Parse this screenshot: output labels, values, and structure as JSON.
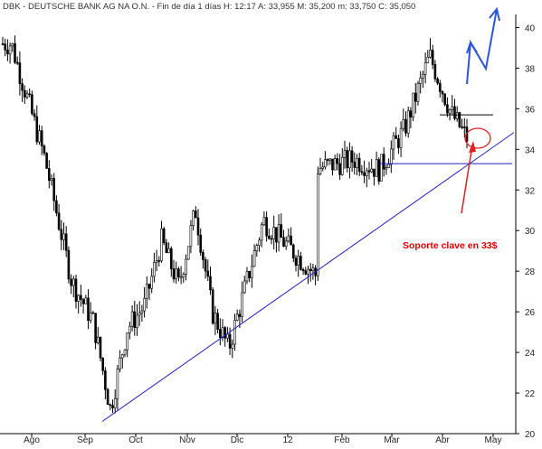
{
  "header": {
    "ticker": "DBK",
    "name": "DEUTSCHE BANK AG NA O.N.",
    "period": "Fin de día 1 días",
    "high": "H: 12:17",
    "ask": "A: 33,955",
    "max": "M: 35,200",
    "min": "m: 33,750",
    "close": "C: 35,050"
  },
  "annotation": {
    "text": "Soporte clave en 33$"
  },
  "colors": {
    "candles": "#000000",
    "trendline": "#1f1fcf",
    "support": "#1f1fcf",
    "projection": "#2a55e0",
    "arrow": "#e02020",
    "circle": "#e02020",
    "annotation": "#e00000"
  },
  "chart_data": {
    "type": "candlestick",
    "title": "DBK - DEUTSCHE BANK AG NA O.N. - Fin de día 1 días",
    "ylim": [
      20,
      41
    ],
    "y_ticks": [
      "20",
      "22",
      "24",
      "26",
      "28",
      "30",
      "32",
      "34",
      "36",
      "38",
      "40"
    ],
    "x_ticks": [
      "Ago",
      "Sep",
      "Oct",
      "Nov",
      "Dic",
      "12",
      "Feb",
      "Mar",
      "Abr",
      "May"
    ],
    "grid": false,
    "anchors": [
      {
        "month": "Jul",
        "price": 39.2
      },
      {
        "month": "Ago",
        "price": 33.5
      },
      {
        "month": "Ago",
        "price": 27.5
      },
      {
        "month": "Sep",
        "price": 25.5
      },
      {
        "month": "Sep",
        "price": 21.2
      },
      {
        "month": "Sep",
        "price": 25.2
      },
      {
        "month": "Oct",
        "price": 26.3
      },
      {
        "month": "Oct",
        "price": 29.5
      },
      {
        "month": "Oct",
        "price": 27.3
      },
      {
        "month": "Nov",
        "price": 31.0
      },
      {
        "month": "Nov",
        "price": 26.0
      },
      {
        "month": "Nov",
        "price": 24.2
      },
      {
        "month": "Dic",
        "price": 30.5
      },
      {
        "month": "Dic",
        "price": 27.8
      },
      {
        "month": "12",
        "price": 29.5
      },
      {
        "month": "12",
        "price": 26.5
      },
      {
        "month": "12",
        "price": 30.0
      },
      {
        "month": "Feb",
        "price": 33.5
      },
      {
        "month": "Feb",
        "price": 33.0
      },
      {
        "month": "Mar",
        "price": 35.0
      },
      {
        "month": "Mar",
        "price": 38.6
      },
      {
        "month": "Abr",
        "price": 35.8
      },
      {
        "month": "Abr",
        "price": 34.5
      },
      {
        "month": "Abr",
        "price": 35.0
      }
    ],
    "support_level": 33.3,
    "resistance_level": 35.7,
    "trendline": [
      {
        "month": "Sep",
        "price": 20.6
      },
      {
        "month": "Abr",
        "price": 33.3
      }
    ]
  }
}
